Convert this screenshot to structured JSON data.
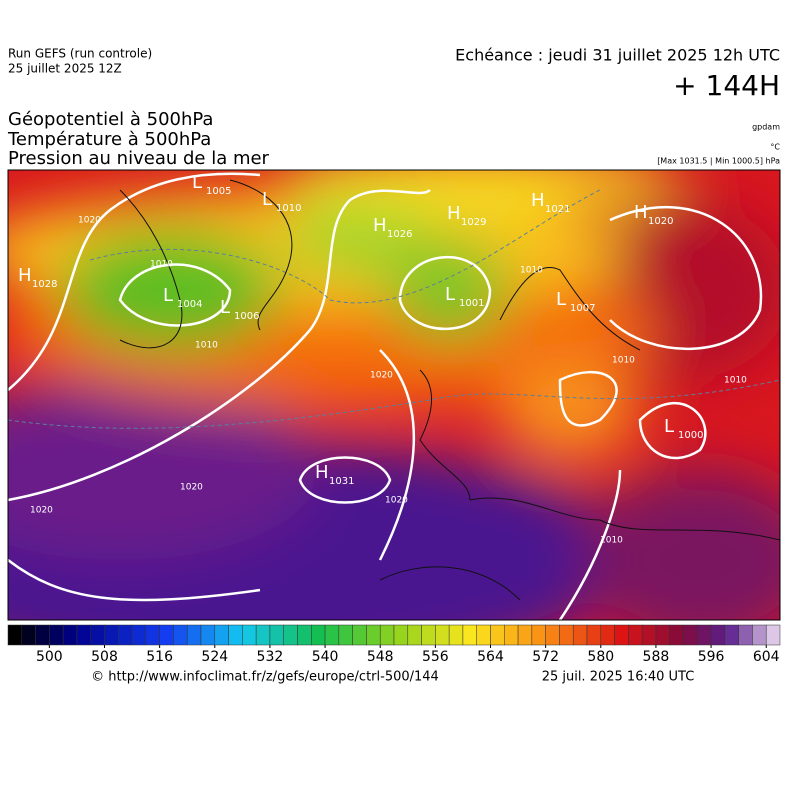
{
  "header": {
    "run": "Run GEFS (run controle)",
    "run_date": "25 juillet 2025 12Z",
    "echeance": "Echéance : jeudi 31 juillet 2025 12h UTC",
    "lead": "+ 144H",
    "fields": [
      "Géopotentiel à 500hPa",
      "Température à 500hPa",
      "Pression au niveau de la mer"
    ],
    "unit_geo": "gpdam",
    "unit_temp": "°C",
    "unit_press": "[Max 1031.5 | Min 1000.5] hPa"
  },
  "map": {
    "centers": [
      {
        "kind": "H",
        "value": "1028"
      },
      {
        "kind": "L",
        "value": "1005"
      },
      {
        "kind": "L",
        "value": "1010"
      },
      {
        "kind": "L",
        "value": "1004"
      },
      {
        "kind": "L",
        "value": "1006"
      },
      {
        "kind": "H",
        "value": "1026"
      },
      {
        "kind": "H",
        "value": "1029"
      },
      {
        "kind": "L",
        "value": "1001"
      },
      {
        "kind": "H",
        "value": "1021"
      },
      {
        "kind": "H",
        "value": "1020"
      },
      {
        "kind": "L",
        "value": "1007"
      },
      {
        "kind": "L",
        "value": "1000"
      },
      {
        "kind": "H",
        "value": "1031"
      }
    ],
    "isobars": [
      "1020",
      "1010",
      "1020",
      "1010",
      "1020",
      "1010",
      "1010",
      "1020",
      "1020",
      "1010",
      "1010"
    ]
  },
  "colorbar": {
    "range": [
      494,
      606
    ],
    "step": 2,
    "ticks": [
      500,
      508,
      516,
      524,
      532,
      540,
      548,
      556,
      564,
      572,
      580,
      588,
      596,
      604
    ]
  },
  "footer": {
    "source": "© http://www.infoclimat.fr/z/gefs/europe/ctrl-500/144",
    "made": "25 juil. 2025 16:40 UTC"
  }
}
